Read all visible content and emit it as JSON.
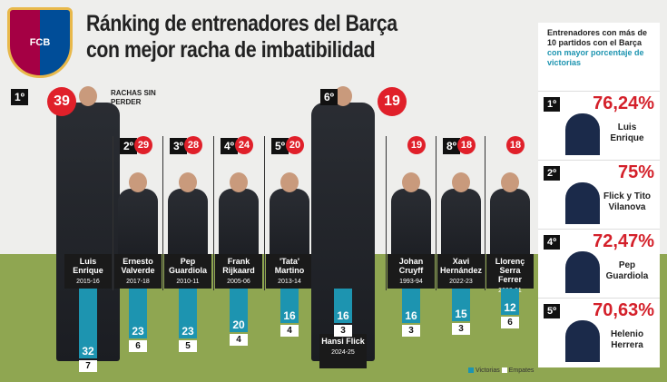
{
  "title": [
    "Ránking de entrenadores del Barça",
    "con mejor racha de imbatibilidad"
  ],
  "logo_text": "FCB",
  "rachas_label": "RACHAS SIN PERDER",
  "colors": {
    "victorias": "#1d94b0",
    "empates": "#ffffff",
    "highlight": "#e0202a"
  },
  "chart_data": {
    "type": "bar",
    "stacked": true,
    "categories": [
      "Luis Enrique",
      "Ernesto Valverde",
      "Pep Guardiola",
      "Frank Rijkaard",
      "'Tata' Martino",
      "Hansi Flick",
      "Johan Cruyff",
      "Xavi Hernández",
      "Llorenç Serra Ferrer"
    ],
    "seasons": [
      "2015-16",
      "2017-18",
      "2010-11",
      "2005-06",
      "2013-14",
      "2024-25",
      "1993-94",
      "2022-23",
      "2000-01"
    ],
    "ranks": [
      "1º",
      "2º",
      "3º",
      "4º",
      "5º",
      "6º",
      "",
      "8º",
      ""
    ],
    "rachas": [
      39,
      29,
      28,
      24,
      20,
      19,
      19,
      18,
      18
    ],
    "series": [
      {
        "name": "Victorias",
        "values": [
          32,
          23,
          23,
          20,
          16,
          16,
          16,
          15,
          12
        ]
      },
      {
        "name": "Empates",
        "values": [
          7,
          6,
          5,
          4,
          4,
          3,
          3,
          3,
          6
        ]
      }
    ],
    "legend": "bottom-right"
  },
  "panel": {
    "heading": "Entrenadores con más de 10 partidos con el Barça",
    "heading_highlight": "con mayor porcentaje de victorias",
    "items": [
      {
        "rank": "1º",
        "pct": "76,24%",
        "name": "Luis Enrique"
      },
      {
        "rank": "2º",
        "pct": "75%",
        "name": "Flick y Tito Vilanova"
      },
      {
        "rank": "4º",
        "pct": "72,47%",
        "name": "Pep Guardiola"
      },
      {
        "rank": "5º",
        "pct": "70,63%",
        "name": "Helenio Herrera"
      }
    ]
  }
}
